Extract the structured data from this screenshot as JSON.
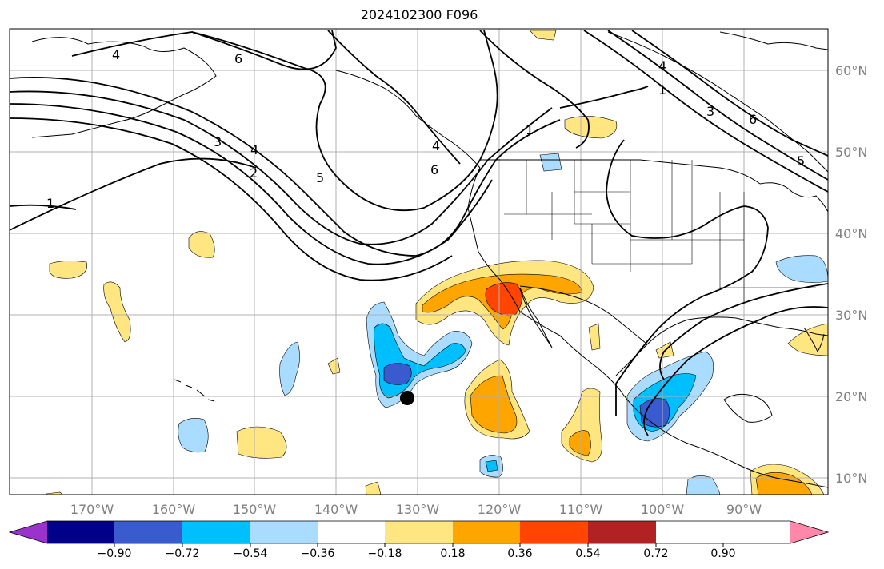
{
  "title": "2024102300 F096",
  "lon_labels": [
    "170°W",
    "160°W",
    "150°W",
    "140°W",
    "130°W",
    "120°W",
    "110°W",
    "100°W",
    "90°W"
  ],
  "lat_labels": [
    "60°N",
    "50°N",
    "40°N",
    "30°N",
    "20°N",
    "10°N"
  ],
  "colorbar": {
    "ticks": [
      "−0.90",
      "−0.72",
      "−0.54",
      "−0.36",
      "−0.18",
      "0.18",
      "0.36",
      "0.54",
      "0.72",
      "0.90"
    ],
    "colors": [
      "#9933cc",
      "#00008b",
      "#3a5bd0",
      "#00bfff",
      "#aadcff",
      "#ffffff",
      "#ffe680",
      "#ffa500",
      "#ff4500",
      "#b22222",
      "#ff88aa"
    ]
  },
  "contour_labels": [
    "4",
    "6",
    "4",
    "1",
    "3",
    "6",
    "5",
    "3",
    "4",
    "2",
    "5",
    "6",
    "4",
    "1",
    "1"
  ],
  "contour_label_minus_one": "1",
  "marker": "storm-position-dot"
}
